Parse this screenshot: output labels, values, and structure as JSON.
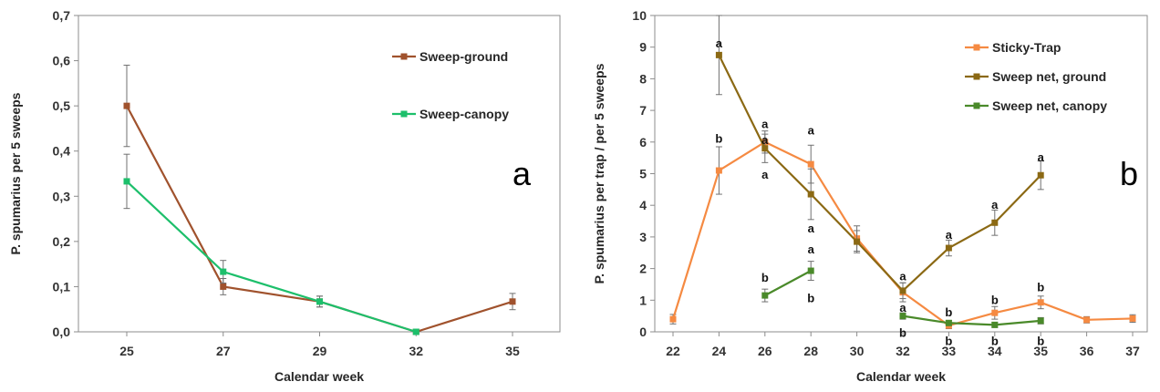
{
  "chart_data": [
    {
      "type": "line",
      "panel_label": "a",
      "xlabel": "Calendar week",
      "ylabel": "P. spumarius per 5 sweeps",
      "categories": [
        "25",
        "27",
        "29",
        "32",
        "35"
      ],
      "ylim": [
        0,
        0.7
      ],
      "yticks": [
        "0,0",
        "0,1",
        "0,2",
        "0,3",
        "0,4",
        "0,5",
        "0,6",
        "0,7"
      ],
      "legend": "top-right",
      "grid": false,
      "series": [
        {
          "name": "Sweep-ground",
          "color": "#a0522d",
          "marker": "square",
          "values": [
            0.5,
            0.1,
            0.067,
            0.0,
            0.067
          ],
          "errors": [
            0.09,
            0.018,
            0.012,
            0.0,
            0.018
          ]
        },
        {
          "name": "Sweep-canopy",
          "color": "#1dbf6b",
          "marker": "square",
          "values": [
            0.333,
            0.133,
            0.067,
            0.0,
            null
          ],
          "errors": [
            0.06,
            0.025,
            0.012,
            0.0,
            null
          ]
        }
      ]
    },
    {
      "type": "line",
      "panel_label": "b",
      "xlabel": "Calendar week",
      "ylabel": "P. spumarius  per trap / per 5 sweeps",
      "categories": [
        "22",
        "24",
        "26",
        "28",
        "30",
        "32",
        "33",
        "34",
        "35",
        "36",
        "37"
      ],
      "ylim": [
        0,
        10
      ],
      "yticks": [
        "0",
        "1",
        "2",
        "3",
        "4",
        "5",
        "6",
        "7",
        "8",
        "9",
        "10"
      ],
      "legend": "top-right",
      "grid": false,
      "series": [
        {
          "name": "Sticky-Trap",
          "color": "#f58a42",
          "marker": "square",
          "values": [
            0.4,
            5.1,
            6.0,
            5.3,
            2.95,
            1.25,
            0.2,
            0.6,
            0.93,
            0.38,
            0.42
          ],
          "errors": [
            0.15,
            0.75,
            0.35,
            0.6,
            0.4,
            0.3,
            0.1,
            0.2,
            0.2,
            0.1,
            0.12
          ]
        },
        {
          "name": "Sweep net, ground",
          "color": "#8b6914",
          "marker": "square",
          "values": [
            null,
            8.75,
            5.8,
            4.35,
            2.85,
            1.3,
            2.65,
            3.45,
            4.95,
            null,
            null
          ],
          "errors": [
            null,
            1.25,
            0.45,
            0.8,
            0.35,
            0.25,
            0.25,
            0.4,
            0.45,
            null,
            null
          ]
        },
        {
          "name": "Sweep net, canopy",
          "color": "#4a8a2a",
          "marker": "square",
          "values": [
            null,
            null,
            1.15,
            1.93,
            null,
            0.5,
            0.28,
            0.22,
            0.35,
            null,
            null
          ],
          "errors": [
            null,
            null,
            0.2,
            0.3,
            null,
            0.1,
            0.08,
            0.08,
            0.1,
            null,
            null
          ]
        }
      ],
      "annotations": [
        {
          "x": "24",
          "y": 9.1,
          "text": "a"
        },
        {
          "x": "24",
          "y": 6.1,
          "text": "b"
        },
        {
          "x": "26",
          "y": 6.55,
          "text": "a"
        },
        {
          "x": "26",
          "y": 6.05,
          "text": "a"
        },
        {
          "x": "26",
          "y": 4.95,
          "text": "a"
        },
        {
          "x": "26",
          "y": 1.7,
          "text": "b"
        },
        {
          "x": "28",
          "y": 6.35,
          "text": "a"
        },
        {
          "x": "28",
          "y": 3.25,
          "text": "a"
        },
        {
          "x": "28",
          "y": 2.6,
          "text": "a"
        },
        {
          "x": "28",
          "y": 1.05,
          "text": "b"
        },
        {
          "x": "32",
          "y": 1.75,
          "text": "a"
        },
        {
          "x": "32",
          "y": 0.75,
          "text": "a"
        },
        {
          "x": "32",
          "y": -0.05,
          "text": "b"
        },
        {
          "x": "33",
          "y": 3.05,
          "text": "a"
        },
        {
          "x": "33",
          "y": 0.6,
          "text": "b"
        },
        {
          "x": "33",
          "y": -0.3,
          "text": "b"
        },
        {
          "x": "34",
          "y": 4.0,
          "text": "a"
        },
        {
          "x": "34",
          "y": 1.0,
          "text": "b"
        },
        {
          "x": "34",
          "y": -0.3,
          "text": "b"
        },
        {
          "x": "35",
          "y": 5.5,
          "text": "a"
        },
        {
          "x": "35",
          "y": 1.4,
          "text": "b"
        },
        {
          "x": "35",
          "y": -0.3,
          "text": "b"
        }
      ]
    }
  ]
}
